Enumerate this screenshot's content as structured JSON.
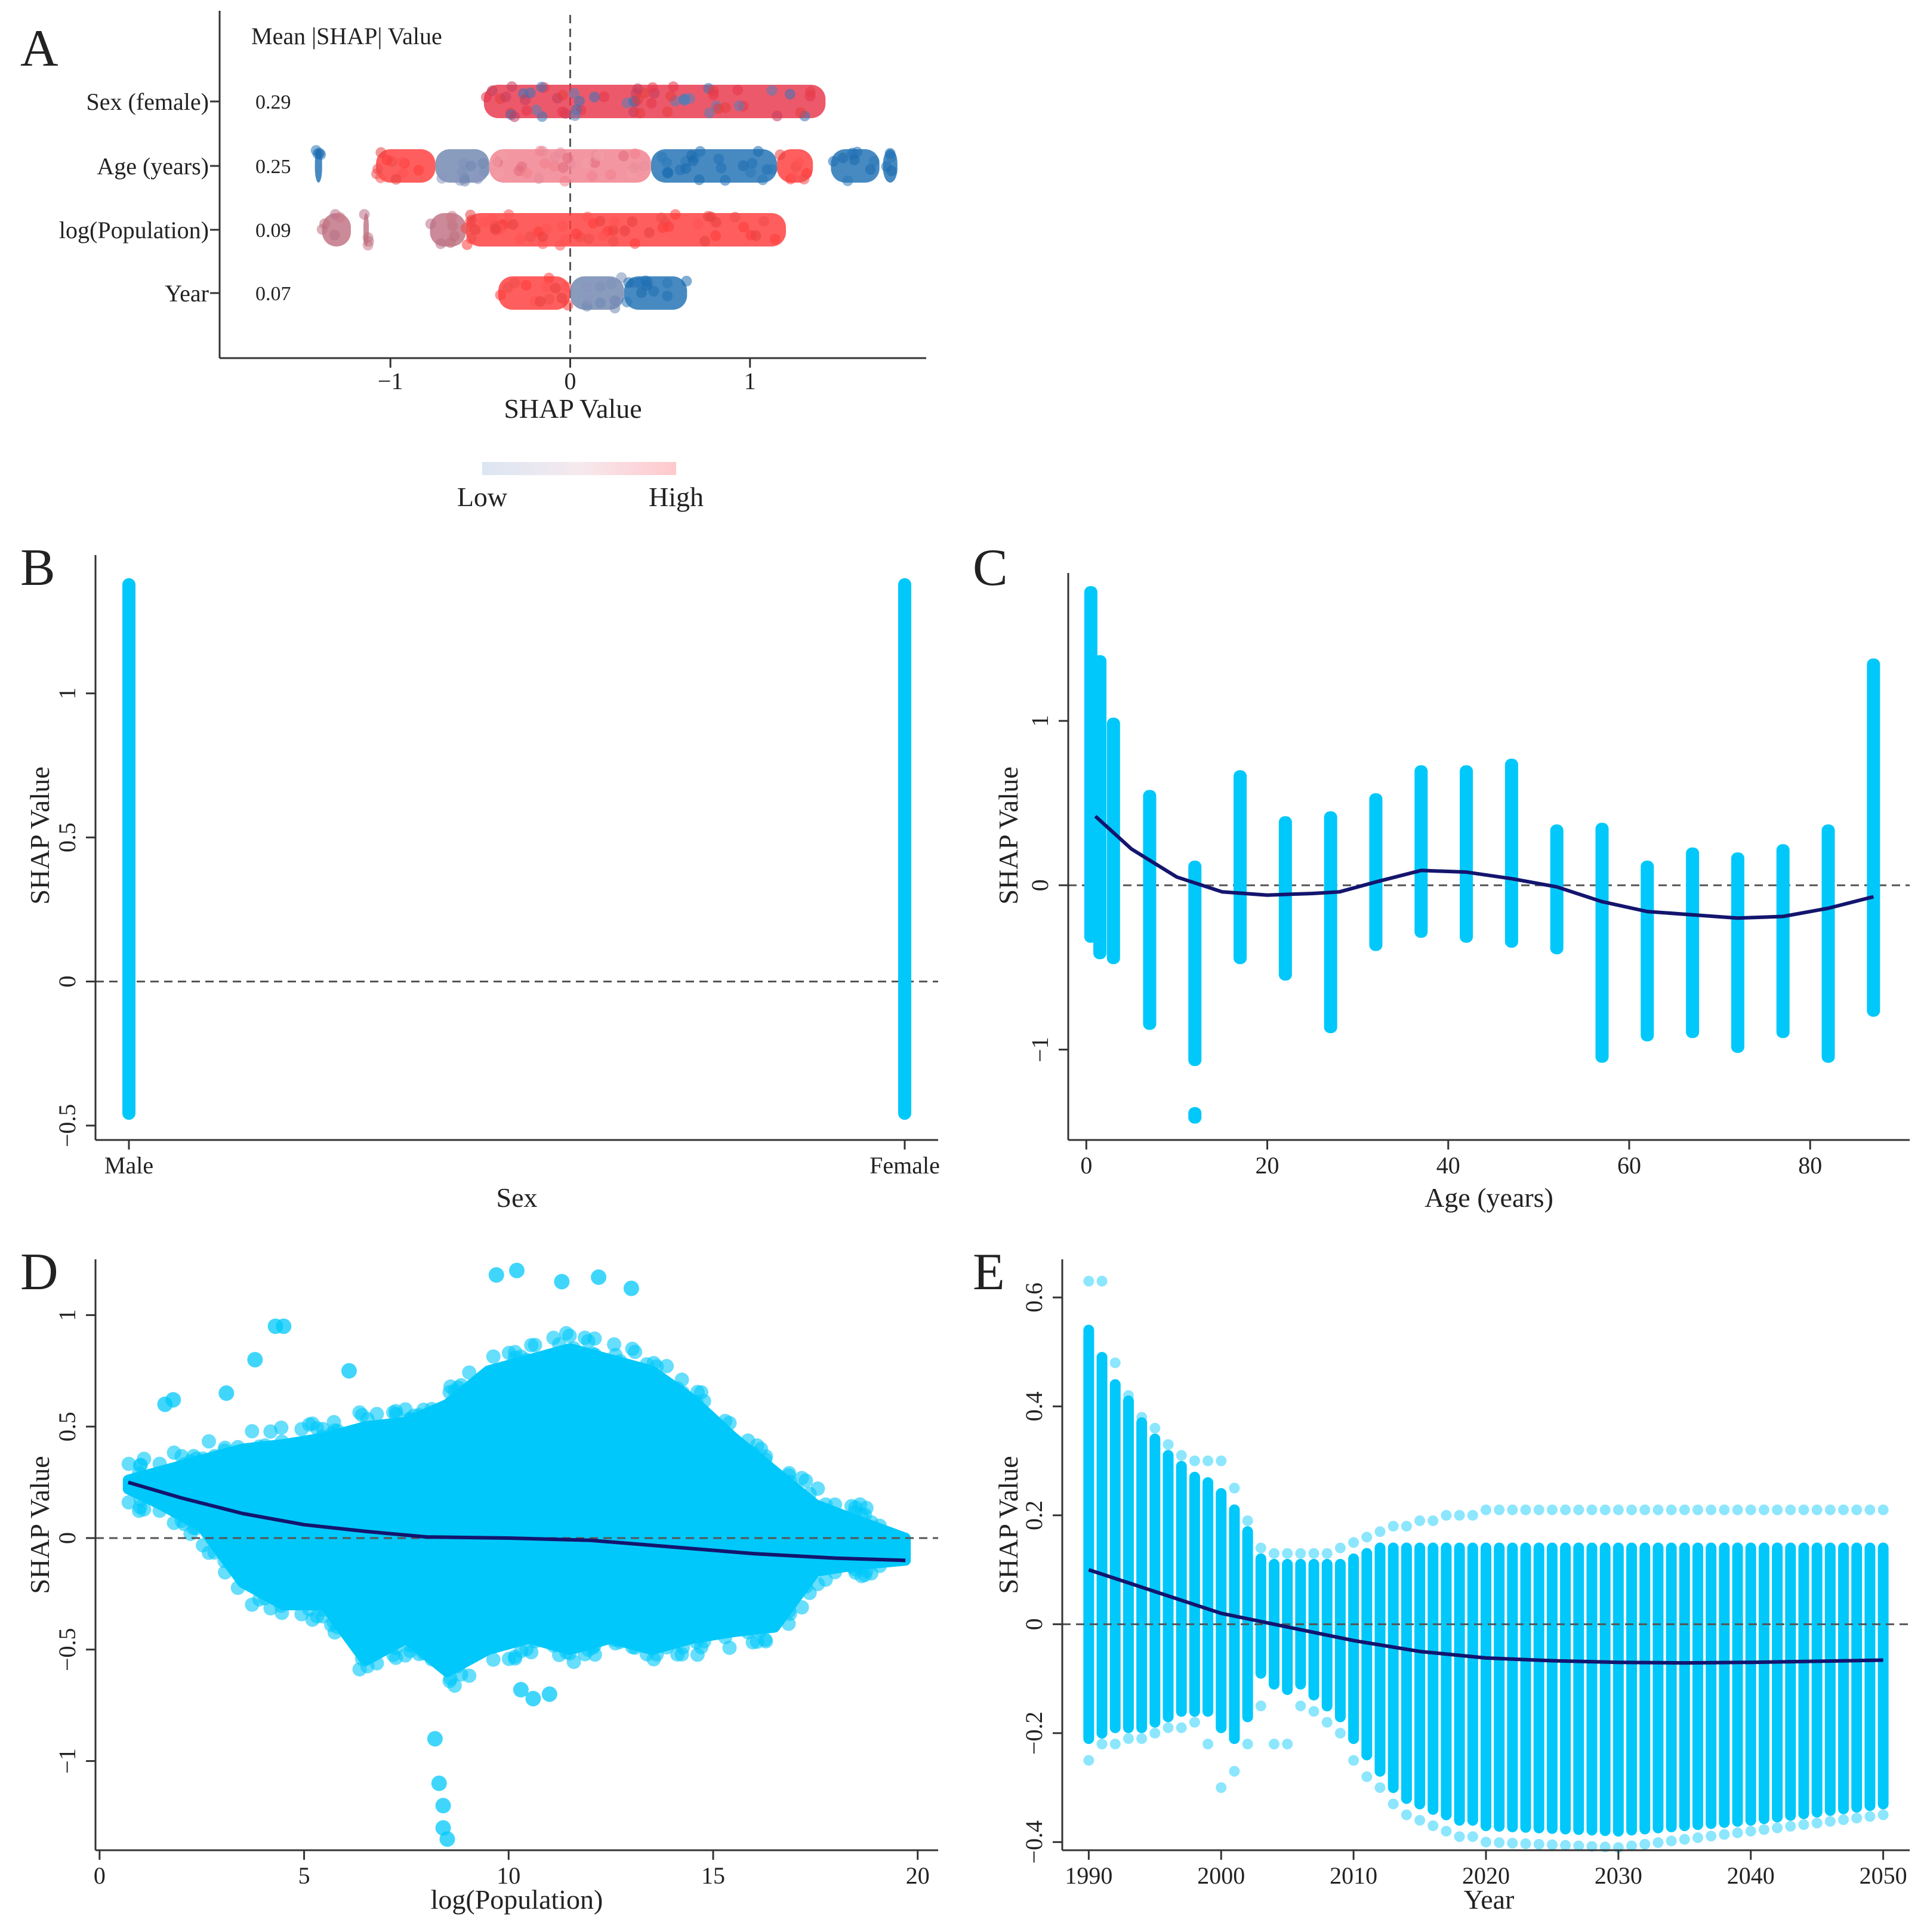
{
  "chart_data": [
    {
      "panel": "A",
      "type": "scatter",
      "subtype": "shap-beeswarm",
      "title": "Mean |SHAP| Value",
      "xlabel": "SHAP Value",
      "ylabel": "",
      "xlim": [
        -1.95,
        1.98
      ],
      "xticks": [
        -1,
        0,
        1
      ],
      "xtick_labels": [
        "−1",
        "0",
        "1"
      ],
      "features": [
        {
          "label": "Sex (female)",
          "mean_abs": "0.29",
          "segments": [
            {
              "from": -0.48,
              "to": 1.42,
              "mix": "redblue"
            }
          ]
        },
        {
          "label": "Age (years)",
          "mean_abs": "0.25",
          "segments": [
            {
              "from": -1.42,
              "to": -1.38,
              "mix": "blue"
            },
            {
              "from": -1.08,
              "to": -0.75,
              "mix": "red"
            },
            {
              "from": -0.75,
              "to": -0.45,
              "mix": "bluegray"
            },
            {
              "from": -0.45,
              "to": 0.45,
              "mix": "pink"
            },
            {
              "from": 0.45,
              "to": 1.15,
              "mix": "blue"
            },
            {
              "from": 1.15,
              "to": 1.35,
              "mix": "red"
            },
            {
              "from": 1.45,
              "to": 1.72,
              "mix": "blue"
            },
            {
              "from": 1.74,
              "to": 1.82,
              "mix": "blue"
            }
          ]
        },
        {
          "label": "log(Population)",
          "mean_abs": "0.09",
          "segments": [
            {
              "from": -1.38,
              "to": -1.22,
              "mix": "mauve"
            },
            {
              "from": -1.15,
              "to": -1.12,
              "mix": "mauve"
            },
            {
              "from": -0.78,
              "to": -0.58,
              "mix": "mauve"
            },
            {
              "from": -0.58,
              "to": 1.2,
              "mix": "red"
            }
          ]
        },
        {
          "label": "Year",
          "mean_abs": "0.07",
          "segments": [
            {
              "from": -0.4,
              "to": 0.0,
              "mix": "red"
            },
            {
              "from": 0.0,
              "to": 0.3,
              "mix": "bluegray"
            },
            {
              "from": 0.3,
              "to": 0.65,
              "mix": "blue"
            }
          ]
        }
      ],
      "colorbar": {
        "low": "Low",
        "high": "High"
      }
    },
    {
      "panel": "B",
      "type": "scatter",
      "subtype": "shap-dependence",
      "xlabel": "Sex",
      "ylabel": "SHAP Value",
      "ylim": [
        -0.55,
        1.48
      ],
      "yticks": [
        -0.5,
        0,
        0.5,
        1
      ],
      "ytick_labels": [
        "−0.5",
        "0",
        "0.5",
        "1"
      ],
      "categories": [
        "Male",
        "Female"
      ],
      "ranges": [
        [
          -0.48,
          1.4
        ],
        [
          -0.48,
          1.4
        ]
      ]
    },
    {
      "panel": "C",
      "type": "scatter",
      "subtype": "shap-dependence",
      "xlabel": "Age (years)",
      "ylabel": "SHAP Value",
      "xlim": [
        -2,
        91
      ],
      "ylim": [
        -1.55,
        1.9
      ],
      "xticks": [
        0,
        20,
        40,
        60,
        80
      ],
      "xtick_labels": [
        "0",
        "20",
        "40",
        "60",
        "80"
      ],
      "yticks": [
        -1,
        0,
        1
      ],
      "ytick_labels": [
        "−1",
        "0",
        "1"
      ],
      "columns": [
        {
          "x": 0.5,
          "lo": -0.35,
          "hi": 1.82
        },
        {
          "x": 1.5,
          "lo": -0.45,
          "hi": 1.4
        },
        {
          "x": 3,
          "lo": -0.48,
          "hi": 1.02
        },
        {
          "x": 7,
          "lo": -0.88,
          "hi": 0.58
        },
        {
          "x": 12,
          "lo": -1.1,
          "hi": 0.15
        },
        {
          "x": 12,
          "lo": -1.45,
          "hi": -1.35
        },
        {
          "x": 17,
          "lo": -0.48,
          "hi": 0.7
        },
        {
          "x": 22,
          "lo": -0.58,
          "hi": 0.42
        },
        {
          "x": 27,
          "lo": -0.9,
          "hi": 0.45
        },
        {
          "x": 32,
          "lo": -0.4,
          "hi": 0.56
        },
        {
          "x": 37,
          "lo": -0.32,
          "hi": 0.73
        },
        {
          "x": 42,
          "lo": -0.35,
          "hi": 0.73
        },
        {
          "x": 47,
          "lo": -0.38,
          "hi": 0.77
        },
        {
          "x": 52,
          "lo": -0.42,
          "hi": 0.37
        },
        {
          "x": 57,
          "lo": -1.08,
          "hi": 0.38
        },
        {
          "x": 62,
          "lo": -0.95,
          "hi": 0.15
        },
        {
          "x": 67,
          "lo": -0.93,
          "hi": 0.23
        },
        {
          "x": 72,
          "lo": -1.02,
          "hi": 0.2
        },
        {
          "x": 77,
          "lo": -0.93,
          "hi": 0.25
        },
        {
          "x": 82,
          "lo": -1.08,
          "hi": 0.37
        },
        {
          "x": 87,
          "lo": -0.8,
          "hi": 1.38
        }
      ],
      "trend": {
        "x": [
          1,
          5,
          10,
          15,
          20,
          25,
          28,
          32,
          37,
          42,
          47,
          52,
          57,
          62,
          67,
          72,
          77,
          82,
          87
        ],
        "y": [
          0.42,
          0.22,
          0.05,
          -0.04,
          -0.06,
          -0.05,
          -0.04,
          0.02,
          0.09,
          0.08,
          0.04,
          -0.01,
          -0.1,
          -0.16,
          -0.18,
          -0.2,
          -0.19,
          -0.14,
          -0.07
        ]
      }
    },
    {
      "panel": "D",
      "type": "scatter",
      "subtype": "shap-dependence",
      "xlabel": "log(Population)",
      "ylabel": "SHAP Value",
      "xlim": [
        -0.1,
        20.5
      ],
      "ylim": [
        -1.4,
        1.25
      ],
      "xticks": [
        0,
        5,
        10,
        15,
        20
      ],
      "xtick_labels": [
        "0",
        "5",
        "10",
        "15",
        "20"
      ],
      "yticks": [
        -1,
        -0.5,
        0,
        0.5,
        1
      ],
      "ytick_labels": [
        "−1",
        "−0.5",
        "0",
        "0.5",
        "1"
      ],
      "envelope": {
        "x": [
          0.7,
          1.5,
          2.5,
          3.5,
          4.5,
          5.5,
          6.5,
          7.5,
          8.5,
          9.5,
          10.5,
          11.5,
          12.5,
          13.5,
          14.5,
          15.5,
          16.5,
          17.5,
          18.5,
          19.7
        ],
        "hi": [
          0.26,
          0.3,
          0.35,
          0.4,
          0.42,
          0.45,
          0.5,
          0.52,
          0.6,
          0.75,
          0.8,
          0.85,
          0.8,
          0.75,
          0.62,
          0.45,
          0.3,
          0.15,
          0.08,
          0.0
        ],
        "lo": [
          0.22,
          0.15,
          0.05,
          -0.2,
          -0.3,
          -0.3,
          -0.55,
          -0.45,
          -0.6,
          -0.5,
          -0.45,
          -0.5,
          -0.45,
          -0.5,
          -0.45,
          -0.42,
          -0.4,
          -0.15,
          -0.12,
          -0.1
        ]
      },
      "outliers": [
        {
          "x": 4.3,
          "y": 0.95
        },
        {
          "x": 4.5,
          "y": 0.95
        },
        {
          "x": 3.8,
          "y": 0.8
        },
        {
          "x": 1.6,
          "y": 0.6
        },
        {
          "x": 1.8,
          "y": 0.62
        },
        {
          "x": 3.1,
          "y": 0.65
        },
        {
          "x": 6.1,
          "y": 0.75
        },
        {
          "x": 9.7,
          "y": 1.18
        },
        {
          "x": 10.2,
          "y": 1.2
        },
        {
          "x": 11.3,
          "y": 1.15
        },
        {
          "x": 12.2,
          "y": 1.17
        },
        {
          "x": 13.0,
          "y": 1.12
        },
        {
          "x": 8.3,
          "y": -1.1
        },
        {
          "x": 8.4,
          "y": -1.2
        },
        {
          "x": 8.4,
          "y": -1.3
        },
        {
          "x": 8.5,
          "y": -1.35
        },
        {
          "x": 8.2,
          "y": -0.9
        },
        {
          "x": 10.3,
          "y": -0.68
        },
        {
          "x": 10.6,
          "y": -0.72
        },
        {
          "x": 11.0,
          "y": -0.7
        }
      ],
      "trend": {
        "x": [
          0.7,
          2,
          3.5,
          5,
          6.5,
          8,
          10,
          12,
          14,
          16,
          18,
          19.7
        ],
        "y": [
          0.25,
          0.18,
          0.11,
          0.06,
          0.03,
          0.005,
          0.0,
          -0.01,
          -0.04,
          -0.07,
          -0.09,
          -0.1
        ]
      }
    },
    {
      "panel": "E",
      "type": "scatter",
      "subtype": "shap-dependence",
      "xlabel": "Year",
      "ylabel": "SHAP Value",
      "xlim": [
        1988,
        2052
      ],
      "ylim": [
        -0.415,
        0.67
      ],
      "xticks": [
        1990,
        2000,
        2010,
        2020,
        2030,
        2040,
        2050
      ],
      "xtick_labels": [
        "1990",
        "2000",
        "2010",
        "2020",
        "2030",
        "2040",
        "2050"
      ],
      "yticks": [
        -0.4,
        -0.2,
        0,
        0.2,
        0.4,
        0.6
      ],
      "ytick_labels": [
        "−0.4",
        "−0.2",
        "0",
        "0.2",
        "0.4",
        "0.6"
      ],
      "bounds": {
        "x": [
          1990,
          1991,
          1992,
          1993,
          1994,
          1995,
          1996,
          1997,
          1998,
          1999,
          2000,
          2001,
          2002,
          2003,
          2004,
          2005,
          2006,
          2007,
          2008,
          2009,
          2010,
          2011,
          2012,
          2013,
          2014,
          2015,
          2016,
          2017,
          2018,
          2019,
          2020,
          2030,
          2040,
          2050
        ],
        "hi": [
          0.55,
          0.5,
          0.45,
          0.42,
          0.38,
          0.35,
          0.32,
          0.3,
          0.28,
          0.27,
          0.25,
          0.22,
          0.18,
          0.13,
          0.12,
          0.12,
          0.12,
          0.12,
          0.12,
          0.12,
          0.13,
          0.14,
          0.15,
          0.15,
          0.15,
          0.15,
          0.15,
          0.15,
          0.15,
          0.15,
          0.15,
          0.15,
          0.15,
          0.15
        ],
        "lo": [
          -0.22,
          -0.21,
          -0.2,
          -0.2,
          -0.2,
          -0.19,
          -0.18,
          -0.17,
          -0.17,
          -0.17,
          -0.2,
          -0.22,
          -0.18,
          -0.1,
          -0.12,
          -0.13,
          -0.12,
          -0.14,
          -0.16,
          -0.18,
          -0.22,
          -0.25,
          -0.28,
          -0.31,
          -0.33,
          -0.34,
          -0.35,
          -0.36,
          -0.37,
          -0.37,
          -0.38,
          -0.39,
          -0.37,
          -0.34
        ],
        "top_dots": [
          0.63,
          0.63,
          0.48,
          0.42,
          0.38,
          0.36,
          0.33,
          0.31,
          0.3,
          0.3,
          0.3,
          0.25,
          0.19,
          0.14,
          0.13,
          0.13,
          0.13,
          0.13,
          0.13,
          0.14,
          0.15,
          0.16,
          0.17,
          0.18,
          0.18,
          0.19,
          0.19,
          0.2,
          0.2,
          0.2,
          0.21,
          0.21,
          0.21,
          0.21
        ],
        "bottom_dots": [
          -0.25,
          -0.22,
          -0.22,
          -0.21,
          -0.21,
          -0.2,
          -0.19,
          -0.19,
          -0.18,
          -0.22,
          -0.3,
          -0.27,
          -0.22,
          -0.15,
          -0.22,
          -0.22,
          -0.15,
          -0.16,
          -0.18,
          -0.2,
          -0.25,
          -0.28,
          -0.3,
          -0.33,
          -0.35,
          -0.36,
          -0.37,
          -0.38,
          -0.39,
          -0.39,
          -0.4,
          -0.41,
          -0.38,
          -0.35
        ]
      },
      "trend": {
        "x": [
          1990,
          1995,
          2000,
          2005,
          2010,
          2015,
          2020,
          2025,
          2030,
          2035,
          2040,
          2045,
          2050
        ],
        "y": [
          0.1,
          0.06,
          0.02,
          -0.005,
          -0.03,
          -0.05,
          -0.062,
          -0.067,
          -0.07,
          -0.071,
          -0.07,
          -0.068,
          -0.066
        ]
      }
    }
  ]
}
